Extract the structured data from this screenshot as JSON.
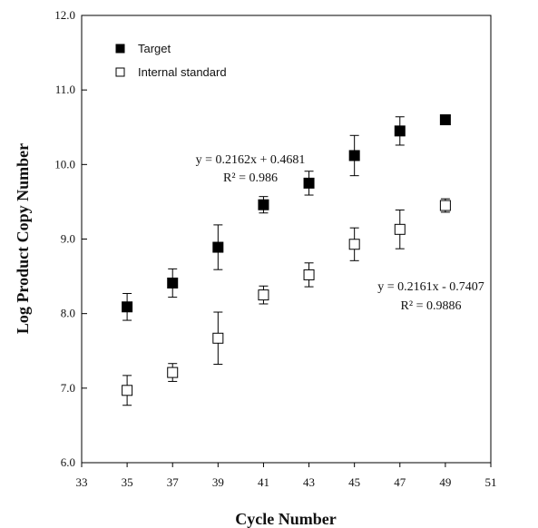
{
  "chart_data": {
    "type": "scatter",
    "title": "",
    "xlabel": "Cycle Number",
    "ylabel": "Log Product Copy Number",
    "xlim": [
      33,
      51
    ],
    "ylim": [
      6.0,
      12.0
    ],
    "x_ticks": [
      "33",
      "35",
      "37",
      "39",
      "41",
      "43",
      "45",
      "47",
      "49",
      "51"
    ],
    "y_ticks": [
      "6.0",
      "7.0",
      "8.0",
      "9.0",
      "10.0",
      "11.0",
      "12.0"
    ],
    "grid": false,
    "legend_position": "top-left",
    "series": [
      {
        "name": "Target",
        "marker": "filled-square",
        "color": "#000000",
        "x": [
          35,
          37,
          39,
          41,
          43,
          45,
          47,
          49
        ],
        "y": [
          8.09,
          8.41,
          8.89,
          9.46,
          9.75,
          10.12,
          10.45,
          10.6
        ],
        "error": [
          0.18,
          0.19,
          0.3,
          0.11,
          0.16,
          0.27,
          0.19,
          0.0
        ]
      },
      {
        "name": "Internal standard",
        "marker": "open-square",
        "color": "#000000",
        "x": [
          35,
          37,
          39,
          41,
          43,
          45,
          47,
          49
        ],
        "y": [
          6.97,
          7.21,
          7.67,
          8.25,
          8.52,
          8.93,
          9.13,
          9.45
        ],
        "error": [
          0.2,
          0.12,
          0.35,
          0.12,
          0.16,
          0.22,
          0.26,
          0.09
        ]
      }
    ],
    "annotations": [
      {
        "line1": "y = 0.2162x + 0.4681",
        "line2": "R² = 0.986"
      },
      {
        "line1": "y = 0.2161x - 0.7407",
        "line2": "R² = 0.9886"
      }
    ]
  }
}
